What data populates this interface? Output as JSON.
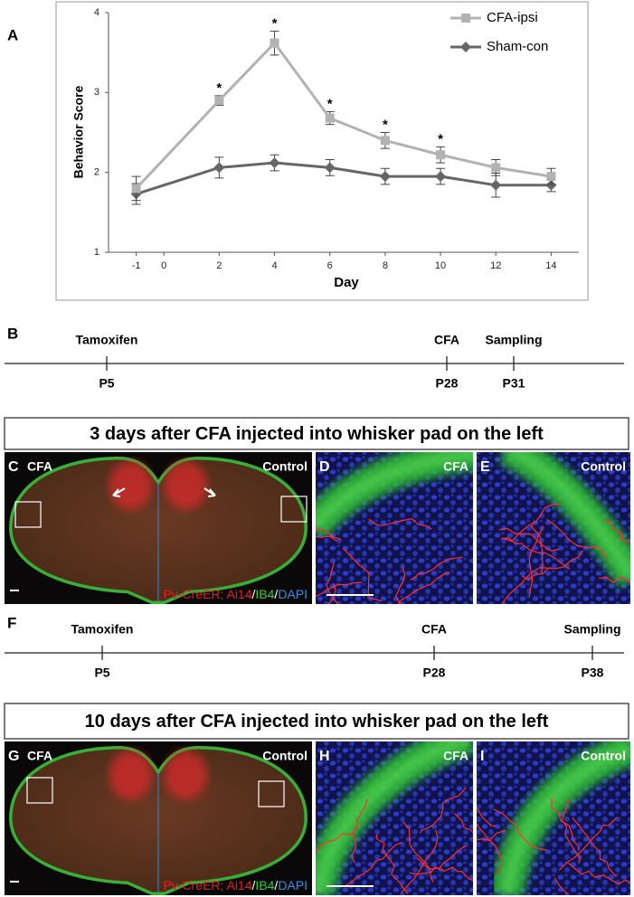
{
  "chart_data": {
    "type": "line",
    "panel_label": "A",
    "xlabel": "Day",
    "ylabel": "Behavior Score",
    "x": [
      -1,
      2,
      4,
      6,
      8,
      10,
      12,
      14
    ],
    "xlim": [
      -2,
      15
    ],
    "xticks": [
      -1,
      0,
      2,
      4,
      6,
      8,
      10,
      12,
      14
    ],
    "ylim": [
      1,
      4
    ],
    "yticks": [
      1,
      2,
      3,
      4
    ],
    "series": [
      {
        "name": "CFA-ipsi",
        "color": "#b2b2b2",
        "marker": "square",
        "values": [
          1.8,
          2.9,
          3.62,
          2.68,
          2.4,
          2.22,
          2.06,
          1.95
        ],
        "errors": [
          0.15,
          0.06,
          0.15,
          0.08,
          0.1,
          0.1,
          0.1,
          0.1
        ]
      },
      {
        "name": "Sham-con",
        "color": "#666666",
        "marker": "diamond",
        "values": [
          1.73,
          2.06,
          2.12,
          2.06,
          1.95,
          1.95,
          1.84,
          1.84
        ],
        "errors": [
          0.13,
          0.13,
          0.1,
          0.1,
          0.1,
          0.1,
          0.15,
          0.08
        ]
      }
    ],
    "annotations": [
      {
        "x": 2,
        "text": "*"
      },
      {
        "x": 4,
        "text": "*"
      },
      {
        "x": 6,
        "text": "*"
      },
      {
        "x": 8,
        "text": "*"
      },
      {
        "x": 10,
        "text": "*"
      }
    ]
  },
  "timelines": [
    {
      "label": "B",
      "events": [
        {
          "name": "Tamoxifen",
          "age": "P5"
        },
        {
          "name": "CFA",
          "age": "P28"
        },
        {
          "name": "Sampling",
          "age": "P31"
        }
      ]
    },
    {
      "label": "F",
      "events": [
        {
          "name": "Tamoxifen",
          "age": "P5"
        },
        {
          "name": "CFA",
          "age": "P28"
        },
        {
          "name": "Sampling",
          "age": "P38"
        }
      ]
    }
  ],
  "sections": [
    {
      "header": "3 days after CFA injected into whisker pad on the left",
      "panels": [
        {
          "label": "C",
          "left": "CFA",
          "right": "Control",
          "stain": [
            {
              "text": "Pv-CreER; Ai14",
              "color": "#e82020"
            },
            {
              "text": "/",
              "color": "#ffffff"
            },
            {
              "text": "IB4",
              "color": "#30d030"
            },
            {
              "text": "/",
              "color": "#ffffff"
            },
            {
              "text": "DAPI",
              "color": "#3a8ce0"
            }
          ]
        },
        {
          "label": "D",
          "right": "CFA"
        },
        {
          "label": "E",
          "right": "Control"
        }
      ]
    },
    {
      "header": "10 days after CFA injected into whisker pad on the left",
      "panels": [
        {
          "label": "G",
          "left": "CFA",
          "right": "Control",
          "stain": [
            {
              "text": "Pv-CreER; Ai14",
              "color": "#e82020"
            },
            {
              "text": "/",
              "color": "#ffffff"
            },
            {
              "text": "IB4",
              "color": "#30d030"
            },
            {
              "text": "/",
              "color": "#ffffff"
            },
            {
              "text": "DAPI",
              "color": "#3a8ce0"
            }
          ]
        },
        {
          "label": "H",
          "right": "CFA"
        },
        {
          "label": "I",
          "right": "Control"
        }
      ]
    }
  ]
}
